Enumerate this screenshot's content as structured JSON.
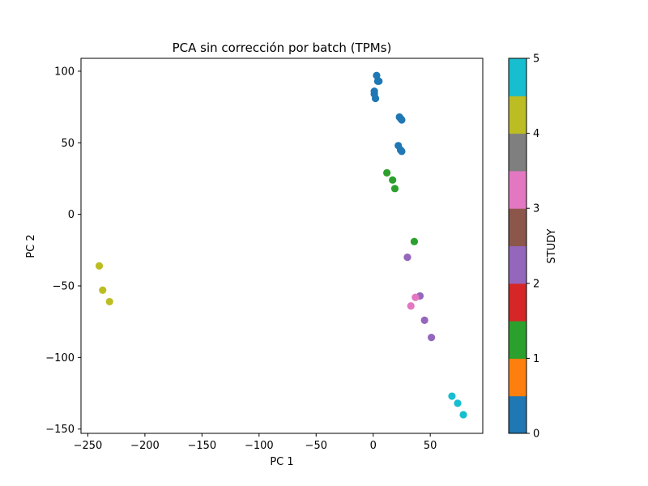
{
  "chart_data": {
    "type": "scatter",
    "title": "PCA sin corrección por batch (TPMs)",
    "xlabel": "PC 1",
    "ylabel": "PC 2",
    "xlim": [
      -256,
      96
    ],
    "ylim": [
      -153,
      109
    ],
    "xticks": [
      -250,
      -200,
      -150,
      -100,
      -50,
      0,
      50
    ],
    "yticks": [
      -150,
      -100,
      -50,
      0,
      50,
      100
    ],
    "grid": false,
    "colorbar": {
      "label": "STUDY",
      "range": [
        0,
        5
      ],
      "ticks": [
        0,
        1,
        2,
        3,
        4,
        5
      ],
      "colors": [
        "#1f77b4",
        "#ff7f0e",
        "#2ca02c",
        "#d62728",
        "#9467bd",
        "#8c564b",
        "#e377c2",
        "#7f7f7f",
        "#bcbd22",
        "#17becf"
      ]
    },
    "points": [
      {
        "x": 3,
        "y": 97,
        "study": 0
      },
      {
        "x": 4,
        "y": 93,
        "study": 0
      },
      {
        "x": 5,
        "y": 93,
        "study": 0
      },
      {
        "x": 1,
        "y": 86,
        "study": 0
      },
      {
        "x": 1,
        "y": 84,
        "study": 0
      },
      {
        "x": 2,
        "y": 81,
        "study": 0
      },
      {
        "x": 23,
        "y": 68,
        "study": 0
      },
      {
        "x": 24,
        "y": 67,
        "study": 0
      },
      {
        "x": 25,
        "y": 66,
        "study": 0
      },
      {
        "x": 22,
        "y": 48,
        "study": 0
      },
      {
        "x": 24,
        "y": 45,
        "study": 0
      },
      {
        "x": 25,
        "y": 44,
        "study": 0
      },
      {
        "x": 12,
        "y": 29,
        "study": 1
      },
      {
        "x": 17,
        "y": 24,
        "study": 1
      },
      {
        "x": 19,
        "y": 18,
        "study": 1
      },
      {
        "x": 36,
        "y": -19,
        "study": 1
      },
      {
        "x": 30,
        "y": -30,
        "study": 2
      },
      {
        "x": 41,
        "y": -57,
        "study": 2
      },
      {
        "x": 45,
        "y": -74,
        "study": 2
      },
      {
        "x": 51,
        "y": -86,
        "study": 2
      },
      {
        "x": 37,
        "y": -58,
        "study": 3
      },
      {
        "x": 33,
        "y": -64,
        "study": 3
      },
      {
        "x": -240,
        "y": -36,
        "study": 4
      },
      {
        "x": -237,
        "y": -53,
        "study": 4
      },
      {
        "x": -231,
        "y": -61,
        "study": 4
      },
      {
        "x": 69,
        "y": -127,
        "study": 5
      },
      {
        "x": 74,
        "y": -132,
        "study": 5
      },
      {
        "x": 79,
        "y": -140,
        "study": 5
      }
    ]
  }
}
